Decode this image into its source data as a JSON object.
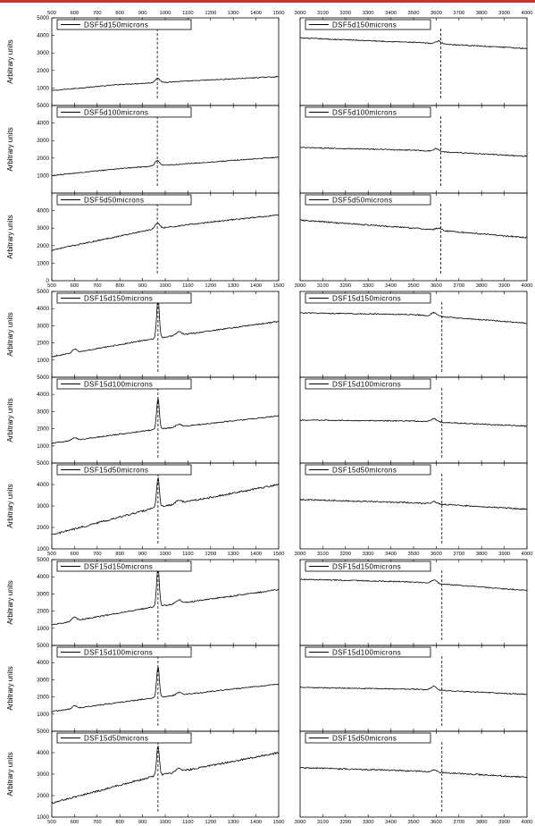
{
  "page": {
    "accent_color": "#c9332b"
  },
  "chart_data": [
    {
      "type": "line",
      "group": 1,
      "row": 0,
      "side": "left",
      "legend": "DSF5d150microns",
      "ylabel": "Arbitrary units",
      "xlabel": "",
      "xlim": [
        500,
        1500
      ],
      "ylim": [
        0,
        5000
      ],
      "xticks": [
        500,
        600,
        700,
        800,
        900,
        1000,
        1100,
        1200,
        1300,
        1400,
        1500
      ],
      "yticks": [
        1000,
        2000,
        3000,
        4000,
        5000
      ],
      "marker_x": 965,
      "baseline": [
        [
          500,
          850
        ],
        [
          800,
          1200
        ],
        [
          1500,
          1650
        ]
      ],
      "peaks": [
        [
          965,
          250,
          10
        ]
      ],
      "noise": 25
    },
    {
      "type": "line",
      "group": 1,
      "row": 0,
      "side": "right",
      "legend": "DSF5d150microns",
      "ylabel": "",
      "xlabel": "",
      "xlim": [
        3000,
        4000
      ],
      "ylim": [
        0,
        5000
      ],
      "xticks": [
        3000,
        3100,
        3200,
        3300,
        3400,
        3500,
        3600,
        3700,
        3800,
        3900,
        4000
      ],
      "yticks": [],
      "marker_x": 3620,
      "baseline": [
        [
          3000,
          3850
        ],
        [
          3500,
          3600
        ],
        [
          4000,
          3250
        ]
      ],
      "peaks": [
        [
          3610,
          150,
          12
        ]
      ],
      "noise": 30
    },
    {
      "type": "line",
      "group": 1,
      "row": 1,
      "side": "left",
      "legend": "DSF5d100microns",
      "ylabel": "Arbitrary units",
      "xlabel": "",
      "xlim": [
        500,
        1500
      ],
      "ylim": [
        0,
        5000
      ],
      "xticks": [
        500,
        600,
        700,
        800,
        900,
        1000,
        1100,
        1200,
        1300,
        1400,
        1500
      ],
      "yticks": [
        1000,
        2000,
        3000,
        4000,
        5000
      ],
      "marker_x": 965,
      "baseline": [
        [
          500,
          1000
        ],
        [
          800,
          1400
        ],
        [
          1500,
          2050
        ]
      ],
      "peaks": [
        [
          965,
          300,
          10
        ]
      ],
      "noise": 25
    },
    {
      "type": "line",
      "group": 1,
      "row": 1,
      "side": "right",
      "legend": "DSF5d100microns",
      "ylabel": "",
      "xlabel": "",
      "xlim": [
        3000,
        4000
      ],
      "ylim": [
        0,
        5000
      ],
      "xticks": [
        3000,
        3100,
        3200,
        3300,
        3400,
        3500,
        3600,
        3700,
        3800,
        3900,
        4000
      ],
      "yticks": [],
      "marker_x": 3620,
      "baseline": [
        [
          3000,
          2600
        ],
        [
          3500,
          2450
        ],
        [
          4000,
          2100
        ]
      ],
      "peaks": [
        [
          3600,
          150,
          12
        ]
      ],
      "noise": 30
    },
    {
      "type": "line",
      "group": 1,
      "row": 2,
      "side": "left",
      "legend": "DSF5d50microns",
      "ylabel": "Arbitrary units",
      "xlabel": "",
      "xlim": [
        500,
        1500
      ],
      "ylim": [
        0,
        5000
      ],
      "xticks": [
        500,
        600,
        700,
        800,
        900,
        1000,
        1100,
        1200,
        1300,
        1400,
        1500
      ],
      "yticks": [
        0,
        1000,
        2000,
        3000,
        4000
      ],
      "marker_x": 965,
      "baseline": [
        [
          500,
          1750
        ],
        [
          950,
          2950
        ],
        [
          1200,
          3350
        ],
        [
          1500,
          3750
        ]
      ],
      "peaks": [
        [
          965,
          300,
          10
        ]
      ],
      "noise": 35
    },
    {
      "type": "line",
      "group": 1,
      "row": 2,
      "side": "right",
      "legend": "DSF5d50microns",
      "ylabel": "",
      "xlabel": "",
      "xlim": [
        3000,
        4000
      ],
      "ylim": [
        0,
        5000
      ],
      "xticks": [
        3000,
        3100,
        3200,
        3300,
        3400,
        3500,
        3600,
        3700,
        3800,
        3900,
        4000
      ],
      "yticks": [],
      "marker_x": 3620,
      "baseline": [
        [
          3000,
          3450
        ],
        [
          3500,
          3000
        ],
        [
          4000,
          2450
        ]
      ],
      "peaks": [
        [
          3610,
          120,
          12
        ]
      ],
      "noise": 40
    },
    {
      "type": "line",
      "group": 2,
      "row": 0,
      "side": "left",
      "legend": "DSF15d150microns",
      "ylabel": "Arbitrary units",
      "xlabel": "",
      "xlim": [
        500,
        1500
      ],
      "ylim": [
        0,
        5000
      ],
      "xticks": [
        500,
        600,
        700,
        800,
        900,
        1000,
        1100,
        1200,
        1300,
        1400,
        1500
      ],
      "yticks": [
        1000,
        2000,
        3000,
        4000,
        5000
      ],
      "marker_x": 968,
      "baseline": [
        [
          500,
          1200
        ],
        [
          950,
          2250
        ],
        [
          1500,
          3250
        ]
      ],
      "peaks": [
        [
          968,
          2300,
          6
        ],
        [
          600,
          200,
          10
        ],
        [
          1060,
          200,
          12
        ]
      ],
      "noise": 35
    },
    {
      "type": "line",
      "group": 2,
      "row": 0,
      "side": "right",
      "legend": "DSF15d150microns",
      "ylabel": "",
      "xlabel": "",
      "xlim": [
        3000,
        4000
      ],
      "ylim": [
        0,
        5000
      ],
      "xticks": [
        3000,
        3100,
        3200,
        3300,
        3400,
        3500,
        3600,
        3700,
        3800,
        3900,
        4000
      ],
      "yticks": [],
      "marker_x": 3625,
      "baseline": [
        [
          3000,
          3750
        ],
        [
          3500,
          3650
        ],
        [
          4000,
          3150
        ]
      ],
      "peaks": [
        [
          3590,
          200,
          12
        ]
      ],
      "noise": 30
    },
    {
      "type": "line",
      "group": 2,
      "row": 1,
      "side": "left",
      "legend": "DSF15d100microns",
      "ylabel": "Arbitrary units",
      "xlabel": "",
      "xlim": [
        500,
        1500
      ],
      "ylim": [
        0,
        5000
      ],
      "xticks": [
        500,
        600,
        700,
        800,
        900,
        1000,
        1100,
        1200,
        1300,
        1400,
        1500
      ],
      "yticks": [
        1000,
        2000,
        3000,
        4000,
        5000
      ],
      "marker_x": 968,
      "baseline": [
        [
          500,
          1150
        ],
        [
          950,
          1950
        ],
        [
          1500,
          2750
        ]
      ],
      "peaks": [
        [
          968,
          1800,
          6
        ],
        [
          600,
          150,
          10
        ],
        [
          1060,
          150,
          12
        ]
      ],
      "noise": 30
    },
    {
      "type": "line",
      "group": 2,
      "row": 1,
      "side": "right",
      "legend": "DSF15d100microns",
      "ylabel": "",
      "xlabel": "",
      "xlim": [
        3000,
        4000
      ],
      "ylim": [
        0,
        5000
      ],
      "xticks": [
        3000,
        3100,
        3200,
        3300,
        3400,
        3500,
        3600,
        3700,
        3800,
        3900,
        4000
      ],
      "yticks": [],
      "marker_x": 3625,
      "baseline": [
        [
          3000,
          2500
        ],
        [
          3500,
          2450
        ],
        [
          4000,
          2150
        ]
      ],
      "peaks": [
        [
          3590,
          200,
          12
        ]
      ],
      "noise": 30
    },
    {
      "type": "line",
      "group": 2,
      "row": 2,
      "side": "left",
      "legend": "DSF15d50microns",
      "ylabel": "Arbitrary units",
      "xlabel": "",
      "xlim": [
        500,
        1500
      ],
      "ylim": [
        1000,
        5000
      ],
      "xticks": [
        500,
        600,
        700,
        800,
        900,
        1000,
        1100,
        1200,
        1300,
        1400,
        1500
      ],
      "yticks": [
        1000,
        2000,
        3000,
        4000,
        5000
      ],
      "marker_x": 968,
      "baseline": [
        [
          500,
          1650
        ],
        [
          950,
          2900
        ],
        [
          1500,
          4000
        ]
      ],
      "peaks": [
        [
          968,
          1400,
          6
        ],
        [
          1060,
          150,
          12
        ]
      ],
      "noise": 40
    },
    {
      "type": "line",
      "group": 2,
      "row": 2,
      "side": "right",
      "legend": "DSF15d50microns",
      "ylabel": "",
      "xlabel": "",
      "xlim": [
        3000,
        4000
      ],
      "ylim": [
        1000,
        5000
      ],
      "xticks": [
        3000,
        3100,
        3200,
        3300,
        3400,
        3500,
        3600,
        3700,
        3800,
        3900,
        4000
      ],
      "yticks": [],
      "marker_x": 3625,
      "baseline": [
        [
          3000,
          3300
        ],
        [
          3500,
          3150
        ],
        [
          4000,
          2850
        ]
      ],
      "peaks": [
        [
          3590,
          100,
          12
        ]
      ],
      "noise": 30
    },
    {
      "type": "line",
      "group": 3,
      "row": 0,
      "side": "left",
      "legend": "DSF15d150microns",
      "ylabel": "Arbitrary units",
      "xlabel": "",
      "xlim": [
        500,
        1500
      ],
      "ylim": [
        0,
        5000
      ],
      "xticks": [
        500,
        600,
        700,
        800,
        900,
        1000,
        1100,
        1200,
        1300,
        1400,
        1500
      ],
      "yticks": [
        1000,
        2000,
        3000,
        4000,
        5000
      ],
      "marker_x": 968,
      "baseline": [
        [
          500,
          1200
        ],
        [
          950,
          2250
        ],
        [
          1500,
          3250
        ]
      ],
      "peaks": [
        [
          968,
          2300,
          6
        ],
        [
          600,
          200,
          10
        ],
        [
          1060,
          200,
          12
        ]
      ],
      "noise": 35
    },
    {
      "type": "line",
      "group": 3,
      "row": 0,
      "side": "right",
      "legend": "DSF15d150microns",
      "ylabel": "",
      "xlabel": "",
      "xlim": [
        3000,
        4000
      ],
      "ylim": [
        0,
        5000
      ],
      "xticks": [
        3000,
        3100,
        3200,
        3300,
        3400,
        3500,
        3600,
        3700,
        3800,
        3900,
        4000
      ],
      "yticks": [],
      "marker_x": 3625,
      "baseline": [
        [
          3000,
          3850
        ],
        [
          3500,
          3700
        ],
        [
          4000,
          3200
        ]
      ],
      "peaks": [
        [
          3590,
          200,
          12
        ]
      ],
      "noise": 30
    },
    {
      "type": "line",
      "group": 3,
      "row": 1,
      "side": "left",
      "legend": "DSF15d100microns",
      "ylabel": "Arbitrary units",
      "xlabel": "",
      "xlim": [
        500,
        1500
      ],
      "ylim": [
        0,
        5000
      ],
      "xticks": [
        500,
        600,
        700,
        800,
        900,
        1000,
        1100,
        1200,
        1300,
        1400,
        1500
      ],
      "yticks": [
        1000,
        2000,
        3000,
        4000,
        5000
      ],
      "marker_x": 968,
      "baseline": [
        [
          500,
          1150
        ],
        [
          950,
          1950
        ],
        [
          1500,
          2750
        ]
      ],
      "peaks": [
        [
          968,
          1800,
          6
        ],
        [
          600,
          150,
          10
        ],
        [
          1060,
          150,
          12
        ]
      ],
      "noise": 30
    },
    {
      "type": "line",
      "group": 3,
      "row": 1,
      "side": "right",
      "legend": "DSF15d100microns",
      "ylabel": "",
      "xlabel": "",
      "xlim": [
        3000,
        4000
      ],
      "ylim": [
        0,
        5000
      ],
      "xticks": [
        3000,
        3100,
        3200,
        3300,
        3400,
        3500,
        3600,
        3700,
        3800,
        3900,
        4000
      ],
      "yticks": [],
      "marker_x": 3625,
      "baseline": [
        [
          3000,
          2550
        ],
        [
          3500,
          2450
        ],
        [
          4000,
          2150
        ]
      ],
      "peaks": [
        [
          3590,
          220,
          12
        ]
      ],
      "noise": 30
    },
    {
      "type": "line",
      "group": 3,
      "row": 2,
      "side": "left",
      "legend": "DSF15d50microns",
      "ylabel": "Arbitrary units",
      "xlabel": "",
      "xlim": [
        500,
        1500
      ],
      "ylim": [
        1000,
        5000
      ],
      "xticks": [
        500,
        600,
        700,
        800,
        900,
        1000,
        1100,
        1200,
        1300,
        1400,
        1500
      ],
      "yticks": [
        1000,
        2000,
        3000,
        4000,
        5000
      ],
      "marker_x": 968,
      "baseline": [
        [
          500,
          1650
        ],
        [
          950,
          2900
        ],
        [
          1500,
          4000
        ]
      ],
      "peaks": [
        [
          968,
          1400,
          6
        ],
        [
          1060,
          150,
          12
        ]
      ],
      "noise": 40
    },
    {
      "type": "line",
      "group": 3,
      "row": 2,
      "side": "right",
      "legend": "DSF15d50microns",
      "ylabel": "",
      "xlabel": "",
      "xlim": [
        3000,
        4000
      ],
      "ylim": [
        1000,
        5000
      ],
      "xticks": [
        3000,
        3100,
        3200,
        3300,
        3400,
        3500,
        3600,
        3700,
        3800,
        3900,
        4000
      ],
      "yticks": [],
      "marker_x": 3625,
      "baseline": [
        [
          3000,
          3300
        ],
        [
          3500,
          3150
        ],
        [
          4000,
          2850
        ]
      ],
      "peaks": [
        [
          3590,
          100,
          12
        ]
      ],
      "noise": 30
    }
  ]
}
